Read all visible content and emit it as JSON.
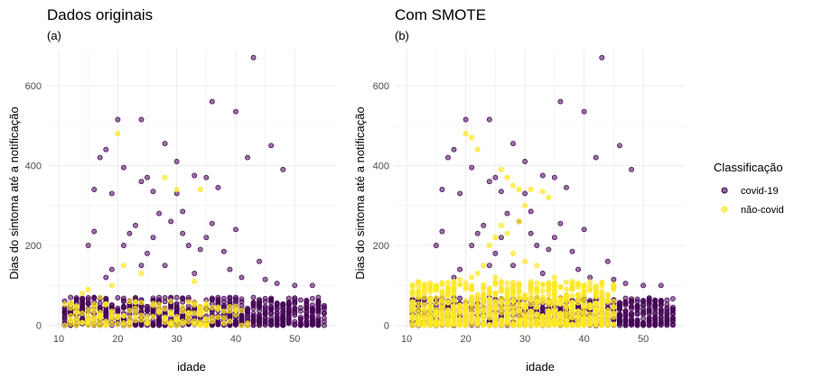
{
  "colors": {
    "covid": "#440154",
    "naocovid": "#FDE725",
    "grid": "#ebebeb"
  },
  "legend": {
    "title": "Classificação",
    "position": "right",
    "items": [
      {
        "label": "covid-19",
        "color": "#440154"
      },
      {
        "label": "não-covid",
        "color": "#FDE725"
      }
    ]
  },
  "panels": [
    {
      "title": "Dados originais",
      "subtitle": "(a)"
    },
    {
      "title": "Com SMOTE",
      "subtitle": "(b)"
    }
  ],
  "chart_data": [
    {
      "type": "scatter",
      "title": "Dados originais",
      "subtitle": "(a)",
      "xlabel": "idade",
      "ylabel": "Dias do sintoma até a notificação",
      "xlim": [
        8,
        57
      ],
      "ylim": [
        -10,
        690
      ],
      "xticks": [
        10,
        20,
        30,
        40,
        50
      ],
      "yticks": [
        0,
        200,
        400,
        600
      ],
      "grid": true,
      "series": [
        {
          "name": "covid-19",
          "dense_band": {
            "x": [
              11,
              55
            ],
            "y": [
              0,
              70
            ]
          },
          "points": [
            [
              43,
              670
            ],
            [
              20,
              515
            ],
            [
              24,
              515
            ],
            [
              36,
              560
            ],
            [
              40,
              535
            ],
            [
              46,
              450
            ],
            [
              48,
              390
            ],
            [
              28,
              455
            ],
            [
              18,
              440
            ],
            [
              17,
              420
            ],
            [
              25,
              370
            ],
            [
              24,
              360
            ],
            [
              21,
              395
            ],
            [
              30,
              410
            ],
            [
              33,
              375
            ],
            [
              35,
              370
            ],
            [
              42,
              420
            ],
            [
              16,
              340
            ],
            [
              19,
              330
            ],
            [
              26,
              335
            ],
            [
              37,
              345
            ],
            [
              30,
              330
            ],
            [
              31,
              285
            ],
            [
              27,
              280
            ],
            [
              29,
              260
            ],
            [
              36,
              255
            ],
            [
              40,
              240
            ],
            [
              23,
              250
            ],
            [
              22,
              230
            ],
            [
              21,
              200
            ],
            [
              25,
              180
            ],
            [
              34,
              190
            ],
            [
              38,
              185
            ],
            [
              44,
              160
            ],
            [
              24,
              150
            ],
            [
              16,
              235
            ],
            [
              15,
              200
            ],
            [
              31,
              230
            ],
            [
              35,
              220
            ],
            [
              28,
              150
            ],
            [
              33,
              130
            ],
            [
              39,
              140
            ],
            [
              41,
              120
            ],
            [
              47,
              105
            ],
            [
              50,
              100
            ],
            [
              53,
              100
            ],
            [
              19,
              140
            ],
            [
              18,
              120
            ],
            [
              26,
              220
            ],
            [
              32,
              200
            ],
            [
              45,
              115
            ],
            [
              12,
              70
            ],
            [
              13,
              65
            ],
            [
              14,
              55
            ],
            [
              52,
              60
            ],
            [
              54,
              40
            ],
            [
              55,
              30
            ]
          ]
        },
        {
          "name": "não-covid",
          "dense_band": {
            "x": [
              11,
              42
            ],
            "y": [
              0,
              60
            ]
          },
          "points": [
            [
              20,
              480
            ],
            [
              28,
              370
            ],
            [
              30,
              340
            ],
            [
              34,
              340
            ],
            [
              21,
              150
            ],
            [
              24,
              130
            ],
            [
              19,
              100
            ],
            [
              15,
              90
            ],
            [
              33,
              110
            ],
            [
              14,
              80
            ],
            [
              17,
              70
            ],
            [
              29,
              60
            ],
            [
              35,
              55
            ]
          ]
        }
      ]
    },
    {
      "type": "scatter",
      "title": "Com SMOTE",
      "subtitle": "(b)",
      "xlabel": "idade",
      "ylabel": "Dias do sintoma até a notificação",
      "xlim": [
        8,
        57
      ],
      "ylim": [
        -10,
        690
      ],
      "xticks": [
        10,
        20,
        30,
        40,
        50
      ],
      "yticks": [
        0,
        200,
        400,
        600
      ],
      "grid": true,
      "series": [
        {
          "name": "covid-19",
          "dense_band": {
            "x": [
              11,
              55
            ],
            "y": [
              0,
              70
            ]
          },
          "points": [
            [
              43,
              670
            ],
            [
              20,
              515
            ],
            [
              24,
              515
            ],
            [
              36,
              560
            ],
            [
              40,
              535
            ],
            [
              46,
              450
            ],
            [
              48,
              390
            ],
            [
              28,
              455
            ],
            [
              18,
              440
            ],
            [
              17,
              420
            ],
            [
              25,
              370
            ],
            [
              24,
              360
            ],
            [
              21,
              395
            ],
            [
              30,
              410
            ],
            [
              33,
              375
            ],
            [
              35,
              370
            ],
            [
              42,
              420
            ],
            [
              16,
              340
            ],
            [
              19,
              330
            ],
            [
              26,
              335
            ],
            [
              37,
              345
            ],
            [
              30,
              330
            ],
            [
              31,
              285
            ],
            [
              27,
              280
            ],
            [
              29,
              260
            ],
            [
              36,
              255
            ],
            [
              40,
              240
            ],
            [
              23,
              250
            ],
            [
              22,
              230
            ],
            [
              21,
              200
            ],
            [
              25,
              180
            ],
            [
              34,
              190
            ],
            [
              38,
              185
            ],
            [
              44,
              160
            ],
            [
              24,
              150
            ],
            [
              16,
              235
            ],
            [
              15,
              200
            ],
            [
              31,
              230
            ],
            [
              35,
              220
            ],
            [
              28,
              150
            ],
            [
              33,
              130
            ],
            [
              39,
              140
            ],
            [
              41,
              120
            ],
            [
              47,
              105
            ],
            [
              50,
              100
            ],
            [
              53,
              100
            ],
            [
              19,
              140
            ],
            [
              18,
              120
            ],
            [
              26,
              220
            ],
            [
              32,
              200
            ],
            [
              45,
              115
            ],
            [
              12,
              70
            ],
            [
              13,
              65
            ],
            [
              14,
              55
            ],
            [
              52,
              60
            ],
            [
              54,
              40
            ],
            [
              55,
              30
            ]
          ]
        },
        {
          "name": "não-covid",
          "dense_band": {
            "x": [
              11,
              45
            ],
            "y": [
              0,
              110
            ]
          },
          "points": [
            [
              20,
              480
            ],
            [
              21,
              470
            ],
            [
              22,
              440
            ],
            [
              26,
              390
            ],
            [
              27,
              370
            ],
            [
              28,
              350
            ],
            [
              29,
              340
            ],
            [
              31,
              340
            ],
            [
              33,
              335
            ],
            [
              34,
              320
            ],
            [
              30,
              300
            ],
            [
              29,
              260
            ],
            [
              26,
              250
            ],
            [
              27,
              230
            ],
            [
              25,
              220
            ],
            [
              24,
              200
            ],
            [
              28,
              180
            ],
            [
              30,
              160
            ],
            [
              32,
              150
            ],
            [
              23,
              150
            ],
            [
              22,
              130
            ],
            [
              21,
              120
            ],
            [
              19,
              115
            ],
            [
              25,
              120
            ],
            [
              35,
              120
            ],
            [
              36,
              95
            ],
            [
              38,
              90
            ],
            [
              40,
              85
            ],
            [
              42,
              80
            ],
            [
              17,
              90
            ],
            [
              16,
              80
            ],
            [
              15,
              100
            ],
            [
              18,
              110
            ]
          ]
        }
      ]
    }
  ]
}
